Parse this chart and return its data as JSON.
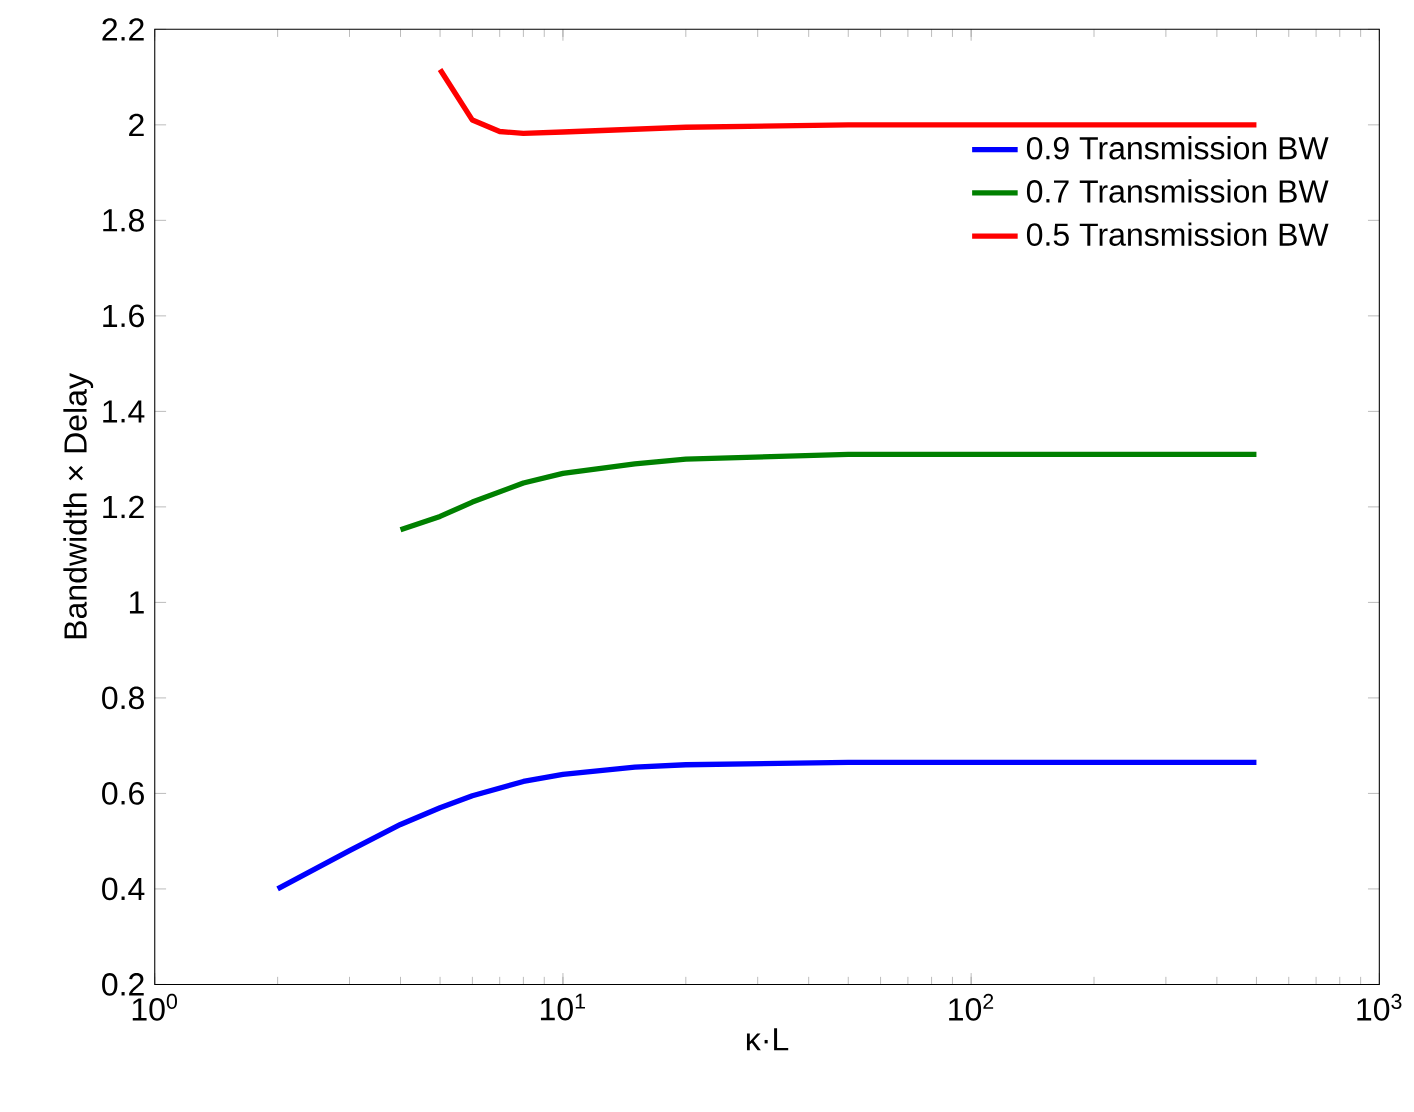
{
  "chart_data": {
    "type": "line",
    "xlabel": "κ·L",
    "ylabel": "Bandwidth × Delay",
    "log": "x",
    "grid": false,
    "legend": "top right",
    "line_style": "solid",
    "marker": "none",
    "xlim": [
      1,
      1000
    ],
    "xticks": [
      {
        "value": 1,
        "label": "10$^{0}$"
      },
      {
        "value": 10,
        "label": "10$^{1}$"
      },
      {
        "value": 100,
        "label": "10$^{2}$"
      },
      {
        "value": 1000,
        "label": "10$^{3}$"
      }
    ],
    "ylim": [
      0.2,
      2.2
    ],
    "yticks": [
      0.2,
      0.4,
      0.6,
      0.8,
      1,
      1.2,
      1.4,
      1.6,
      1.8,
      2,
      2.2
    ],
    "series": [
      {
        "name": "0.9 Transmission BW",
        "color": "#0000ff",
        "x": [
          2,
          3,
          4,
          5,
          6,
          8,
          10,
          15,
          20,
          50,
          500
        ],
        "values": [
          0.4,
          0.48,
          0.535,
          0.57,
          0.595,
          0.625,
          0.64,
          0.655,
          0.66,
          0.665,
          0.665
        ]
      },
      {
        "name": "0.7 Transmission BW",
        "color": "#008000",
        "x": [
          4,
          5,
          6,
          8,
          10,
          15,
          20,
          50,
          500
        ],
        "values": [
          1.152,
          1.18,
          1.21,
          1.25,
          1.27,
          1.29,
          1.3,
          1.31,
          1.31
        ]
      },
      {
        "name": "0.5 Transmission BW",
        "color": "#ff0000",
        "x": [
          5,
          6,
          7,
          8,
          10,
          20,
          50,
          500
        ],
        "values": [
          2.116,
          2.01,
          1.986,
          1.982,
          1.985,
          1.995,
          2.0,
          2.0
        ]
      }
    ]
  }
}
